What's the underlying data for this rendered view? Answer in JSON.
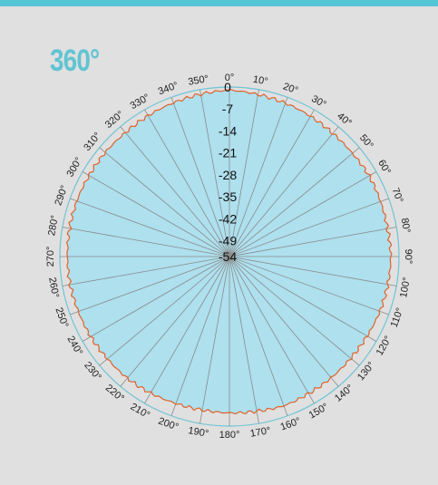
{
  "panel": {
    "title": "360°"
  },
  "colors": {
    "top_bar": "#55c6d6",
    "title": "#62c4d2",
    "background": "#e0e0e0",
    "fill": "#aee0ee",
    "trace": "#e0622a",
    "grid": "#8a8a8a",
    "rings": "#b8dde8",
    "outer_ring": "#6ec4d4"
  },
  "chart_data": {
    "type": "polar",
    "title": "",
    "angle_direction": "clockwise",
    "zero_position": "top",
    "angle_ticks": [
      "0°",
      "10°",
      "20°",
      "30°",
      "40°",
      "50°",
      "60°",
      "70°",
      "80°",
      "90°",
      "100°",
      "110°",
      "120°",
      "130°",
      "140°",
      "150°",
      "160°",
      "170°",
      "180°",
      "190°",
      "200°",
      "210°",
      "220°",
      "230°",
      "240°",
      "250°",
      "260°",
      "270°",
      "280°",
      "290°",
      "300°",
      "310°",
      "320°",
      "330°",
      "340°",
      "350°"
    ],
    "radial_ticks": [
      "0",
      "-7",
      "-14",
      "-21",
      "-28",
      "-35",
      "-42",
      "-49",
      "-54"
    ],
    "r_range": [
      -54,
      0
    ],
    "series": [
      {
        "angles": [
          0,
          10,
          20,
          30,
          40,
          50,
          60,
          70,
          80,
          90,
          100,
          110,
          120,
          130,
          140,
          150,
          160,
          170,
          180,
          190,
          200,
          210,
          220,
          230,
          240,
          250,
          260,
          270,
          280,
          290,
          300,
          310,
          320,
          330,
          340,
          350
        ],
        "values": [
          -1.0,
          -1.6,
          -2.0,
          -2.4,
          -2.8,
          -2.9,
          -2.6,
          -2.8,
          -2.9,
          -2.6,
          -2.8,
          -3.0,
          -3.4,
          -3.6,
          -3.6,
          -3.6,
          -3.4,
          -4.0,
          -4.2,
          -4.4,
          -4.2,
          -3.8,
          -3.4,
          -3.3,
          -3.0,
          -2.8,
          -2.5,
          -2.4,
          -2.3,
          -2.3,
          -2.4,
          -2.4,
          -2.5,
          -2.2,
          -1.9,
          -1.5
        ]
      }
    ]
  }
}
